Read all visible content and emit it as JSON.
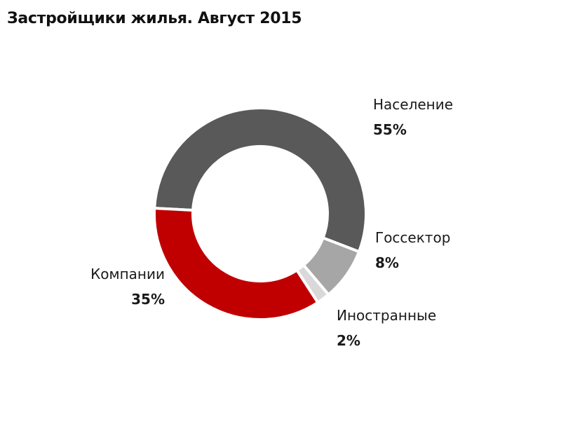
{
  "title": "Застройщики жилья. Август 2015",
  "chart_data": {
    "type": "pie",
    "subtype": "donut",
    "title": "Застройщики жилья. Август 2015",
    "categories": [
      "Население",
      "Госсектор",
      "Иностранные",
      "Компании"
    ],
    "values": [
      55,
      8,
      2,
      35
    ],
    "unit": "%",
    "colors": [
      "#595959",
      "#a6a6a6",
      "#d9d9d9",
      "#c00000"
    ],
    "start_angle_deg": -87,
    "direction": "clockwise",
    "legend": "none (data labels next to slices)",
    "labels": [
      {
        "name": "Население",
        "value": "55%"
      },
      {
        "name": "Госсектор",
        "value": "8%"
      },
      {
        "name": "Иностранные",
        "value": "2%"
      },
      {
        "name": "Компании",
        "value": "35%"
      }
    ]
  }
}
